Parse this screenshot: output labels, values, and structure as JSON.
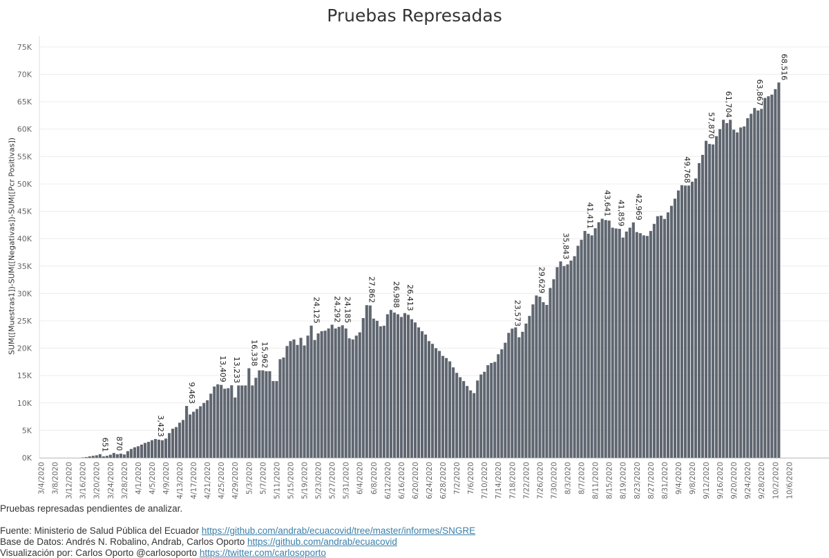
{
  "chart_data": {
    "type": "bar",
    "title": "Pruebas Represadas",
    "ylabel": "SUM([Muestras1])-SUM([Negativas])-SUM([Pcr Positivas])",
    "xlabel": "",
    "ylim": [
      0,
      76000
    ],
    "yticks": [
      0,
      5000,
      10000,
      15000,
      20000,
      25000,
      30000,
      35000,
      40000,
      45000,
      50000,
      55000,
      60000,
      65000,
      70000,
      75000
    ],
    "ytick_labels": [
      "0K",
      "5K",
      "10K",
      "15K",
      "20K",
      "25K",
      "30K",
      "35K",
      "40K",
      "45K",
      "50K",
      "55K",
      "60K",
      "65K",
      "70K",
      "75K"
    ],
    "xticks": [
      "3/4/2020",
      "3/8/2020",
      "3/12/2020",
      "3/16/2020",
      "3/20/2020",
      "3/24/2020",
      "3/28/2020",
      "4/1/2020",
      "4/5/2020",
      "4/9/2020",
      "4/13/2020",
      "4/17/2020",
      "4/21/2020",
      "4/25/2020",
      "4/29/2020",
      "5/3/2020",
      "5/7/2020",
      "5/11/2020",
      "5/15/2020",
      "5/19/2020",
      "5/23/2020",
      "5/27/2020",
      "5/31/2020",
      "6/4/2020",
      "6/8/2020",
      "6/12/2020",
      "6/16/2020",
      "6/20/2020",
      "6/24/2020",
      "6/28/2020",
      "7/2/2020",
      "7/6/2020",
      "7/10/2020",
      "7/14/2020",
      "7/18/2020",
      "7/22/2020",
      "7/26/2020",
      "7/30/2020",
      "8/3/2020",
      "8/7/2020",
      "8/11/2020",
      "8/15/2020",
      "8/19/2020",
      "8/23/2020",
      "8/27/2020",
      "8/31/2020",
      "9/4/2020",
      "9/8/2020",
      "9/12/2020",
      "9/16/2020",
      "9/20/2020",
      "9/24/2020",
      "9/28/2020",
      "10/2/2020",
      "10/6/2020"
    ],
    "x_start": "3/4/2020",
    "x_end": "10/8/2020",
    "color": "#5f6670",
    "grid": true,
    "legend": "none",
    "series": [
      {
        "values": [
          0,
          0,
          0,
          0,
          0,
          0,
          0,
          0,
          0,
          0,
          0,
          0,
          50,
          120,
          250,
          350,
          450,
          651,
          250,
          350,
          550,
          870,
          650,
          750,
          600,
          1200,
          1600,
          1900,
          2100,
          2400,
          2700,
          2900,
          3200,
          3423,
          3300,
          3200,
          3500,
          4500,
          5300,
          5600,
          6400,
          6900,
          9463,
          7900,
          8400,
          8900,
          9400,
          10000,
          10500,
          11700,
          13000,
          13409,
          13300,
          12600,
          12700,
          13233,
          11000,
          13200,
          13200,
          13200,
          16338,
          13200,
          14600,
          15962,
          15962,
          15800,
          15800,
          14000,
          14000,
          18000,
          18300,
          20400,
          21300,
          21600,
          20600,
          21900,
          20500,
          22300,
          24125,
          21500,
          22700,
          23100,
          23200,
          23600,
          24292,
          23600,
          23900,
          24185,
          23600,
          21800,
          21600,
          22300,
          22900,
          25500,
          27862,
          27800,
          25400,
          25000,
          24000,
          24100,
          26200,
          26988,
          26500,
          26200,
          25700,
          26413,
          26100,
          25300,
          24700,
          23800,
          23100,
          22500,
          21300,
          20800,
          20000,
          19500,
          18600,
          18200,
          17600,
          16500,
          15500,
          14700,
          14000,
          13100,
          12300,
          11800,
          14100,
          15200,
          15700,
          16900,
          17300,
          17500,
          18900,
          19800,
          21000,
          22800,
          23573,
          23800,
          22000,
          23000,
          24500,
          25900,
          28000,
          29629,
          29400,
          28400,
          27900,
          31000,
          32600,
          34800,
          35843,
          35000,
          35300,
          36000,
          36800,
          38700,
          39800,
          41411,
          40900,
          40600,
          41900,
          43000,
          43641,
          43400,
          43300,
          42000,
          41859,
          41800,
          40200,
          41300,
          42000,
          42969,
          41200,
          41000,
          40600,
          40500,
          41400,
          42700,
          44100,
          44200,
          43600,
          44800,
          46000,
          47300,
          48800,
          49768,
          49700,
          49700,
          50400,
          51000,
          53800,
          55300,
          57870,
          57300,
          57200,
          58700,
          60000,
          61704,
          61100,
          61700,
          59900,
          59400,
          60300,
          60500,
          62000,
          62800,
          63867,
          63400,
          63700,
          65700,
          66000,
          66300,
          67300,
          68516,
          0,
          0,
          0,
          0,
          0,
          0,
          0,
          0,
          0,
          0,
          0,
          0,
          0,
          0
        ]
      }
    ],
    "data_labels": [
      {
        "index": 17,
        "text": "651"
      },
      {
        "index": 21,
        "text": "870"
      },
      {
        "index": 33,
        "text": "3,423"
      },
      {
        "index": 42,
        "text": "9,463"
      },
      {
        "index": 51,
        "text": "13,409"
      },
      {
        "index": 55,
        "text": "13,233"
      },
      {
        "index": 60,
        "text": "16,338"
      },
      {
        "index": 63,
        "text": "15,962"
      },
      {
        "index": 78,
        "text": "24,125"
      },
      {
        "index": 84,
        "text": "24,292"
      },
      {
        "index": 87,
        "text": "24,185"
      },
      {
        "index": 94,
        "text": "27,862"
      },
      {
        "index": 101,
        "text": "26,988"
      },
      {
        "index": 105,
        "text": "26,413"
      },
      {
        "index": 136,
        "text": "23,573"
      },
      {
        "index": 143,
        "text": "29,629"
      },
      {
        "index": 150,
        "text": "35,843"
      },
      {
        "index": 157,
        "text": "41,411"
      },
      {
        "index": 162,
        "text": "43,641"
      },
      {
        "index": 166,
        "text": "41,859"
      },
      {
        "index": 171,
        "text": "42,969"
      },
      {
        "index": 185,
        "text": "49,768"
      },
      {
        "index": 192,
        "text": "57,870"
      },
      {
        "index": 197,
        "text": "61,704"
      },
      {
        "index": 206,
        "text": "63,867"
      },
      {
        "index": 213,
        "text": "68,516"
      }
    ]
  },
  "footer": {
    "note": "Pruebas represadas pendientes de analizar.",
    "source_prefix": "Fuente: Ministerio de Salud Pública del Ecuador ",
    "source_link": "https://github.com/andrab/ecuacovid/tree/master/informes/SNGRE",
    "db_prefix": "Base de Datos: Andrés N. Robalino, Andrab, Carlos Oporto ",
    "db_link": "https://github.com/andrab/ecuacovid",
    "viz_prefix": "Visualización por: Carlos Oporto @carlosoporto ",
    "viz_link": "https://twitter.com/carlosoporto"
  }
}
